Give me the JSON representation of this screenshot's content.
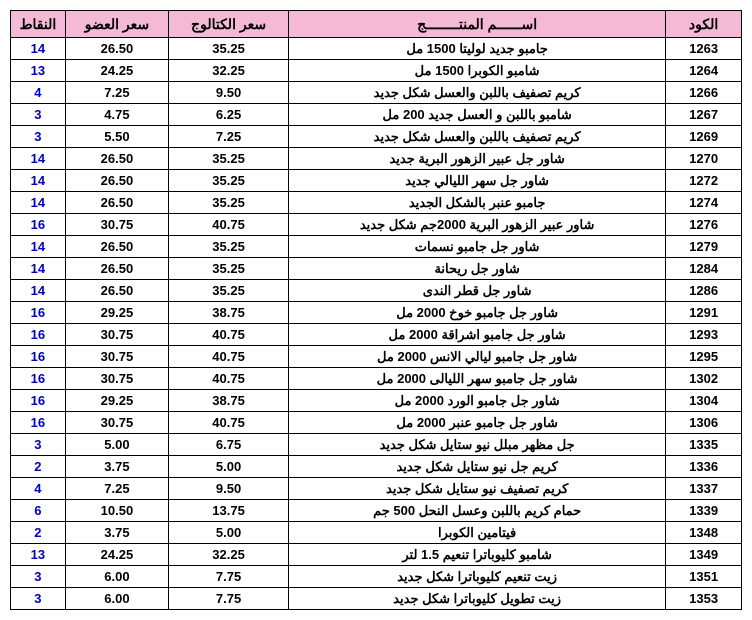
{
  "table": {
    "headerBg": "#f4b9d5",
    "borderColor": "#000000",
    "pointsColor": "#0000c0",
    "columns": {
      "code": "الكود",
      "name": "اســــــم  المنتــــــــج",
      "catalog": "سعر الكتالوج",
      "member": "سعر العضو",
      "points": "النقاط"
    },
    "rows": [
      {
        "code": "1263",
        "name": "جامبو جديد لوليتا 1500 مل",
        "catalog": "35.25",
        "member": "26.50",
        "points": "14"
      },
      {
        "code": "1264",
        "name": "شامبو الكوبرا 1500 مل",
        "catalog": "32.25",
        "member": "24.25",
        "points": "13"
      },
      {
        "code": "1266",
        "name": "كريم تصفيف باللبن والعسل شكل جديد",
        "catalog": "9.50",
        "member": "7.25",
        "points": "4"
      },
      {
        "code": "1267",
        "name": "شامبو باللبن و العسل جديد 200 مل",
        "catalog": "6.25",
        "member": "4.75",
        "points": "3"
      },
      {
        "code": "1269",
        "name": "كريم تصفيف باللبن والعسل شكل جديد",
        "catalog": "7.25",
        "member": "5.50",
        "points": "3"
      },
      {
        "code": "1270",
        "name": "شاور جل عبير الزهور البرية جديد",
        "catalog": "35.25",
        "member": "26.50",
        "points": "14"
      },
      {
        "code": "1272",
        "name": "شاور جل سهر الليالي جديد",
        "catalog": "35.25",
        "member": "26.50",
        "points": "14"
      },
      {
        "code": "1274",
        "name": "جامبو عنبر بالشكل الجديد",
        "catalog": "35.25",
        "member": "26.50",
        "points": "14"
      },
      {
        "code": "1276",
        "name": "شاور عبير الزهور البرية 2000جم شكل جديد",
        "catalog": "40.75",
        "member": "30.75",
        "points": "16"
      },
      {
        "code": "1279",
        "name": "شاور جل جامبو نسمات",
        "catalog": "35.25",
        "member": "26.50",
        "points": "14"
      },
      {
        "code": "1284",
        "name": "شاور جل ريحانة",
        "catalog": "35.25",
        "member": "26.50",
        "points": "14"
      },
      {
        "code": "1286",
        "name": "شاور جل قطر الندى",
        "catalog": "35.25",
        "member": "26.50",
        "points": "14"
      },
      {
        "code": "1291",
        "name": "شاور جل جامبو خوخ 2000 مل",
        "catalog": "38.75",
        "member": "29.25",
        "points": "16"
      },
      {
        "code": "1293",
        "name": "شاور جل جامبو اشراقة 2000 مل",
        "catalog": "40.75",
        "member": "30.75",
        "points": "16"
      },
      {
        "code": "1295",
        "name": "شاور جل جامبو ليالي الانس 2000 مل",
        "catalog": "40.75",
        "member": "30.75",
        "points": "16"
      },
      {
        "code": "1302",
        "name": "شاور جل جامبو سهر الليالى 2000 مل",
        "catalog": "40.75",
        "member": "30.75",
        "points": "16"
      },
      {
        "code": "1304",
        "name": "شاور جل جامبو الورد 2000 مل",
        "catalog": "38.75",
        "member": "29.25",
        "points": "16"
      },
      {
        "code": "1306",
        "name": "شاور جل جامبو عنبر 2000 مل",
        "catalog": "40.75",
        "member": "30.75",
        "points": "16"
      },
      {
        "code": "1335",
        "name": "جل مظهر مبلل نيو ستايل شكل جديد",
        "catalog": "6.75",
        "member": "5.00",
        "points": "3"
      },
      {
        "code": "1336",
        "name": "كريم جل نيو ستايل شكل جديد",
        "catalog": "5.00",
        "member": "3.75",
        "points": "2"
      },
      {
        "code": "1337",
        "name": "كريم تصفيف نيو ستايل شكل جديد",
        "catalog": "9.50",
        "member": "7.25",
        "points": "4"
      },
      {
        "code": "1339",
        "name": "حمام كريم باللبن وعسل النحل 500 جم",
        "catalog": "13.75",
        "member": "10.50",
        "points": "6"
      },
      {
        "code": "1348",
        "name": "فيتامين الكوبرا",
        "catalog": "5.00",
        "member": "3.75",
        "points": "2"
      },
      {
        "code": "1349",
        "name": "شامبو كليوباترا تنعيم 1.5 لتر",
        "catalog": "32.25",
        "member": "24.25",
        "points": "13"
      },
      {
        "code": "1351",
        "name": "زيت تنعيم كليوباترا شكل جديد",
        "catalog": "7.75",
        "member": "6.00",
        "points": "3"
      },
      {
        "code": "1353",
        "name": "زيت تطويل كليوباترا شكل جديد",
        "catalog": "7.75",
        "member": "6.00",
        "points": "3"
      }
    ]
  }
}
